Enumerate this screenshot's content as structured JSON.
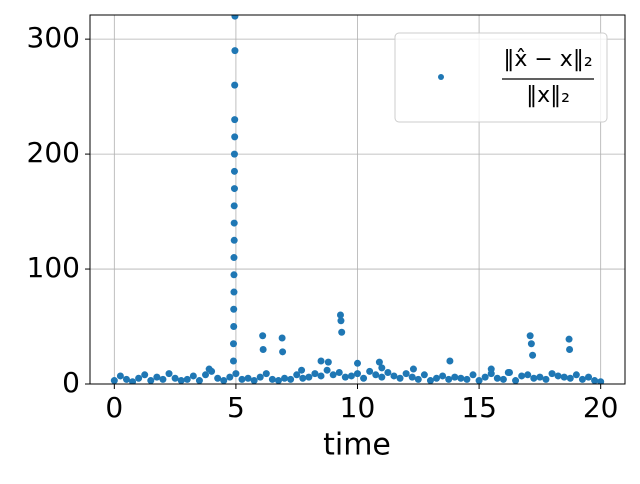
{
  "chart_data": {
    "type": "scatter",
    "xlabel": "time",
    "series": [
      {
        "name": "‖x̂ − x‖₂/‖x‖₂",
        "color": "#1f77b4",
        "x": [
          0,
          0.25,
          0.5,
          0.75,
          1,
          1.25,
          1.5,
          1.75,
          2,
          2.25,
          2.5,
          2.75,
          3,
          3.25,
          3.5,
          3.75,
          4,
          4.25,
          4.5,
          4.75,
          5,
          5.25,
          5.5,
          5.75,
          6,
          6.25,
          6.5,
          6.75,
          7,
          7.25,
          7.5,
          7.75,
          8,
          8.25,
          8.5,
          8.75,
          9,
          9.25,
          9.5,
          9.75,
          10,
          10.25,
          10.5,
          10.75,
          11,
          11.25,
          11.5,
          11.75,
          12,
          12.25,
          12.5,
          12.75,
          13,
          13.25,
          13.5,
          13.75,
          14,
          14.25,
          14.5,
          14.75,
          15,
          15.25,
          15.5,
          15.75,
          16,
          16.25,
          16.5,
          16.75,
          17,
          17.25,
          17.5,
          17.75,
          18,
          18.25,
          18.5,
          18.75,
          19,
          19.25,
          19.5,
          19.75,
          20,
          4.9,
          4.9,
          4.91,
          4.91,
          4.92,
          4.92,
          4.92,
          4.93,
          4.93,
          4.93,
          4.94,
          4.94,
          4.94,
          4.95,
          4.95,
          4.95,
          4.96,
          4.96,
          3.9,
          6.1,
          6.12,
          6.9,
          6.92,
          8.5,
          8.8,
          9.3,
          9.32,
          9.35,
          10,
          10.9,
          12.3,
          13.8,
          15.5,
          17.1,
          17.15,
          17.2,
          18.7,
          18.72,
          16.2,
          11,
          7.7
        ],
        "y": [
          3,
          7,
          4,
          2,
          5,
          8,
          3,
          6,
          4,
          9,
          5,
          3,
          4,
          7,
          3,
          8,
          11,
          5,
          3,
          6,
          9,
          4,
          5,
          3,
          6,
          9,
          4,
          3,
          5,
          4,
          8,
          5,
          6,
          9,
          7,
          12,
          8,
          10,
          6,
          7,
          9,
          5,
          11,
          8,
          6,
          10,
          7,
          5,
          9,
          6,
          4,
          8,
          3,
          5,
          7,
          4,
          6,
          5,
          4,
          8,
          3,
          6,
          9,
          5,
          4,
          10,
          3,
          7,
          8,
          5,
          6,
          4,
          9,
          7,
          6,
          5,
          8,
          4,
          6,
          3,
          2,
          20,
          35,
          50,
          65,
          80,
          95,
          110,
          125,
          140,
          155,
          170,
          185,
          200,
          215,
          230,
          260,
          290,
          320,
          13,
          42,
          30,
          40,
          28,
          20,
          19,
          60,
          55,
          45,
          18,
          19,
          13,
          20,
          13,
          42,
          35,
          25,
          39,
          30,
          10,
          14,
          12
        ]
      }
    ],
    "xlim": [
      -1,
      21
    ],
    "ylim": [
      0,
      321
    ],
    "xticks": [
      0,
      5,
      10,
      15,
      20
    ],
    "yticks": [
      0,
      100,
      200,
      300
    ],
    "grid": true,
    "legend": "upper right"
  }
}
